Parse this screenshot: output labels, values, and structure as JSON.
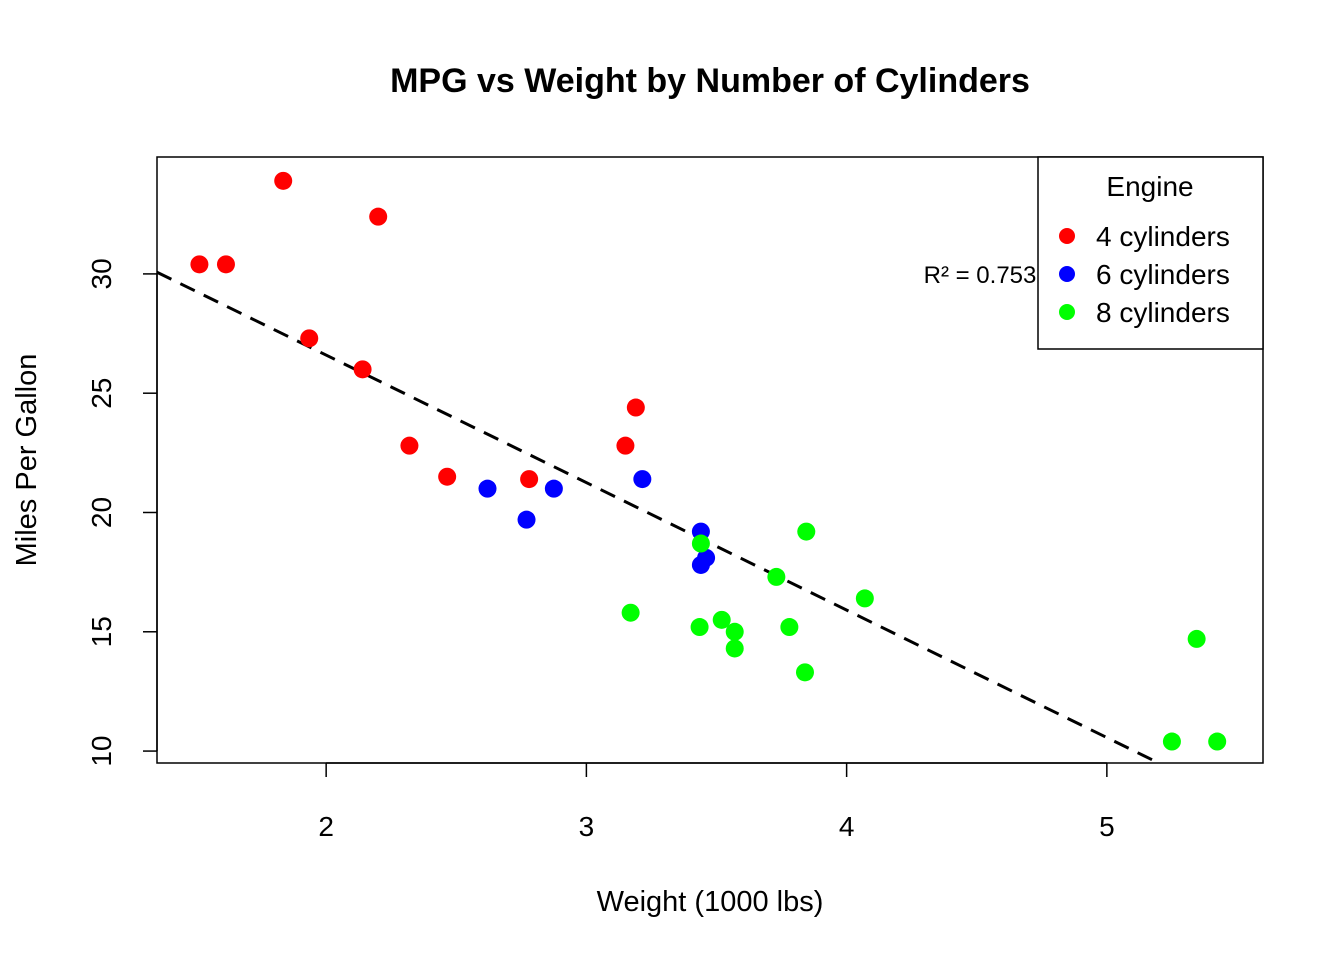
{
  "chart_data": {
    "type": "scatter",
    "title": "MPG vs Weight by Number of Cylinders",
    "xlabel": "Weight (1000 lbs)",
    "ylabel": "Miles Per Gallon",
    "xlim": [
      1.35,
      5.6
    ],
    "ylim": [
      9.5,
      34.9
    ],
    "xticks": [
      2,
      3,
      4,
      5
    ],
    "yticks": [
      10,
      15,
      20,
      25,
      30
    ],
    "grid": false,
    "legend": {
      "title": "Engine",
      "position": "top-right"
    },
    "series": [
      {
        "name": "4 cylinders",
        "color": "#ff0000",
        "points": [
          {
            "x": 1.513,
            "y": 30.4
          },
          {
            "x": 1.615,
            "y": 30.4
          },
          {
            "x": 1.835,
            "y": 33.9
          },
          {
            "x": 2.2,
            "y": 32.4
          },
          {
            "x": 1.935,
            "y": 27.3
          },
          {
            "x": 2.14,
            "y": 26.0
          },
          {
            "x": 2.32,
            "y": 22.8
          },
          {
            "x": 2.465,
            "y": 21.5
          },
          {
            "x": 2.78,
            "y": 21.4
          },
          {
            "x": 3.15,
            "y": 22.8
          },
          {
            "x": 3.19,
            "y": 24.4
          }
        ]
      },
      {
        "name": "6 cylinders",
        "color": "#0000ff",
        "points": [
          {
            "x": 2.62,
            "y": 21.0
          },
          {
            "x": 2.77,
            "y": 19.7
          },
          {
            "x": 2.875,
            "y": 21.0
          },
          {
            "x": 3.215,
            "y": 21.4
          },
          {
            "x": 3.44,
            "y": 19.2
          },
          {
            "x": 3.46,
            "y": 18.1
          },
          {
            "x": 3.44,
            "y": 17.8
          }
        ]
      },
      {
        "name": "8 cylinders",
        "color": "#00ff00",
        "points": [
          {
            "x": 3.17,
            "y": 15.8
          },
          {
            "x": 3.435,
            "y": 15.2
          },
          {
            "x": 3.44,
            "y": 18.7
          },
          {
            "x": 3.52,
            "y": 15.5
          },
          {
            "x": 3.57,
            "y": 15.0
          },
          {
            "x": 3.57,
            "y": 14.3
          },
          {
            "x": 3.73,
            "y": 17.3
          },
          {
            "x": 3.78,
            "y": 15.2
          },
          {
            "x": 3.84,
            "y": 13.3
          },
          {
            "x": 3.845,
            "y": 19.2
          },
          {
            "x": 4.07,
            "y": 16.4
          },
          {
            "x": 5.25,
            "y": 10.4
          },
          {
            "x": 5.345,
            "y": 14.7
          },
          {
            "x": 5.424,
            "y": 10.4
          }
        ]
      }
    ],
    "trendline": {
      "style": "dashed",
      "color": "#000000",
      "intercept": 37.285,
      "slope": -5.344
    },
    "annotation": "R² = 0.753"
  }
}
